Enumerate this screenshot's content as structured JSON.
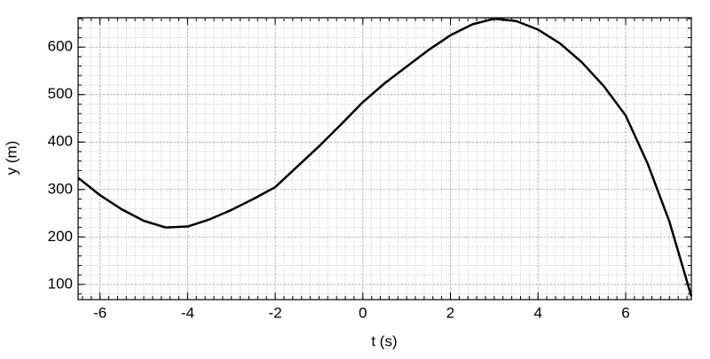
{
  "chart_data": {
    "type": "line",
    "x_label": "t (s)",
    "y_label": "y (m)",
    "x": [
      -6.5,
      -6,
      -5.5,
      -5,
      -4.5,
      -4,
      -3.5,
      -3,
      -2.5,
      -2,
      -1.5,
      -1,
      -0.5,
      0,
      0.5,
      1,
      1.5,
      2,
      2.5,
      3,
      3.5,
      4,
      4.5,
      5,
      5.5,
      6,
      6.5,
      7,
      7.5
    ],
    "series": [
      {
        "color": "#000000",
        "values": [
          325,
          288,
          258,
          234,
          220,
          222,
          237,
          257,
          280,
          305,
          348,
          391,
          437,
          484,
          524,
          559,
          594,
          625,
          648,
          660,
          655,
          637,
          608,
          568,
          518,
          456,
          355,
          232,
          75
        ]
      }
    ],
    "xlim": [
      -6.5,
      7.5
    ],
    "ylim": [
      68,
      662
    ],
    "xticks": [
      -6,
      -4,
      -2,
      0,
      2,
      4,
      6
    ],
    "yticks": [
      100,
      200,
      300,
      400,
      500,
      600
    ],
    "grid": true
  }
}
